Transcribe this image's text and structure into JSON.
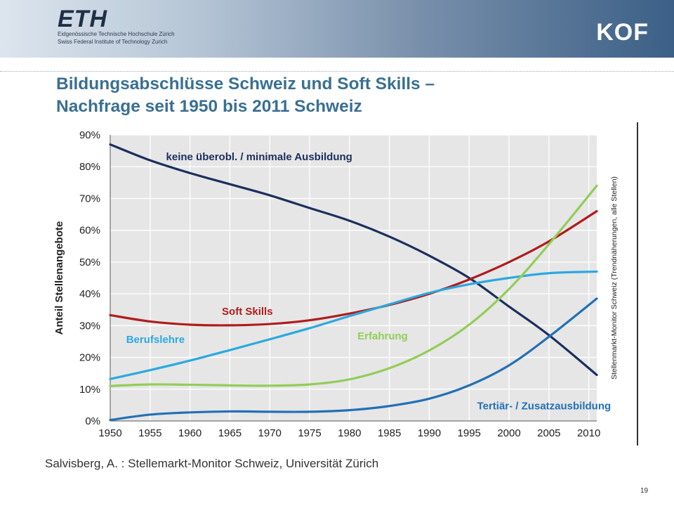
{
  "header": {
    "logo": "ETH",
    "institution_de": "Eidgenössische Technische Hochschule Zürich",
    "institution_en": "Swiss Federal Institute of Technology Zurich",
    "brand": "KOF"
  },
  "title": {
    "line1": "Bildungsabschlüsse Schweiz und Soft Skills –",
    "line2": "Nachfrage seit 1950 bis 2011 Schweiz"
  },
  "source": "Salvisberg, A. : Stellemarkt-Monitor Schweiz, Universität Zürich",
  "page_number": "19",
  "colors": {
    "title": "#3a6f92",
    "keine": "#1b2f5e",
    "soft_skills": "#b01c1c",
    "berufslehre": "#2aa9e0",
    "erfahrung": "#92cd58",
    "tertiaer": "#2270b5",
    "plot_bg": "#e6e6e6"
  },
  "chart_data": {
    "type": "line",
    "title": "",
    "xlabel": "",
    "ylabel": "Anteil Stellenangebote",
    "right_label": "Stellenmarkt-Monitor Schweiz (Trendnäherungen, alle Stellen)",
    "xlim": [
      1950,
      2011
    ],
    "ylim": [
      0,
      90
    ],
    "xticks": [
      1950,
      1955,
      1960,
      1965,
      1970,
      1975,
      1980,
      1985,
      1990,
      1995,
      2000,
      2005,
      2010
    ],
    "yticks": [
      {
        "value": 0,
        "label": "0%"
      },
      {
        "value": 10,
        "label": "10%"
      },
      {
        "value": 20,
        "label": "20%"
      },
      {
        "value": 30,
        "label": "30%"
      },
      {
        "value": 40,
        "label": "40%"
      },
      {
        "value": 50,
        "label": "50%"
      },
      {
        "value": 60,
        "label": "60%"
      },
      {
        "value": 70,
        "label": "70%"
      },
      {
        "value": 80,
        "label": "80%"
      },
      {
        "value": 90,
        "label": "90%"
      }
    ],
    "x": [
      1950,
      1955,
      1960,
      1965,
      1970,
      1975,
      1980,
      1985,
      1990,
      1995,
      2000,
      2005,
      2011
    ],
    "series": [
      {
        "key": "keine",
        "name": "keine überobl. / minimale Ausbildung",
        "color_key": "keine",
        "values": [
          87,
          82,
          78,
          74.5,
          71,
          67,
          63,
          58,
          52,
          45,
          36,
          27,
          14.5
        ],
        "label_at": [
          1957,
          82
        ]
      },
      {
        "key": "soft_skills",
        "name": "Soft Skills",
        "color_key": "soft_skills",
        "values": [
          33.3,
          31.3,
          30.3,
          30.1,
          30.5,
          31.7,
          33.8,
          36.5,
          40,
          44.5,
          50,
          56.5,
          66
        ],
        "label_at": [
          1964,
          33.4
        ]
      },
      {
        "key": "berufslehre",
        "name": "Berufslehre",
        "color_key": "berufslehre",
        "values": [
          13.2,
          16,
          19,
          22.3,
          25.7,
          29.2,
          33,
          36.7,
          40.3,
          43,
          45,
          46.5,
          47
        ],
        "label_at": [
          1952,
          24.5
        ]
      },
      {
        "key": "erfahrung",
        "name": "Erfahrung",
        "color_key": "erfahrung",
        "values": [
          11,
          11.5,
          11.4,
          11.2,
          11.1,
          11.5,
          13.1,
          16.6,
          22.2,
          30.3,
          41.5,
          55.6,
          74
        ],
        "label_at": [
          1981,
          25.6
        ]
      },
      {
        "key": "tertiaer",
        "name": "Tertiär- / Zusatzausbildung",
        "color_key": "tertiaer",
        "values": [
          0.3,
          2,
          2.7,
          3,
          2.9,
          2.9,
          3.4,
          4.7,
          7,
          11.2,
          17.5,
          26.5,
          38.5
        ],
        "label_at": [
          1996,
          3.6
        ]
      }
    ]
  }
}
